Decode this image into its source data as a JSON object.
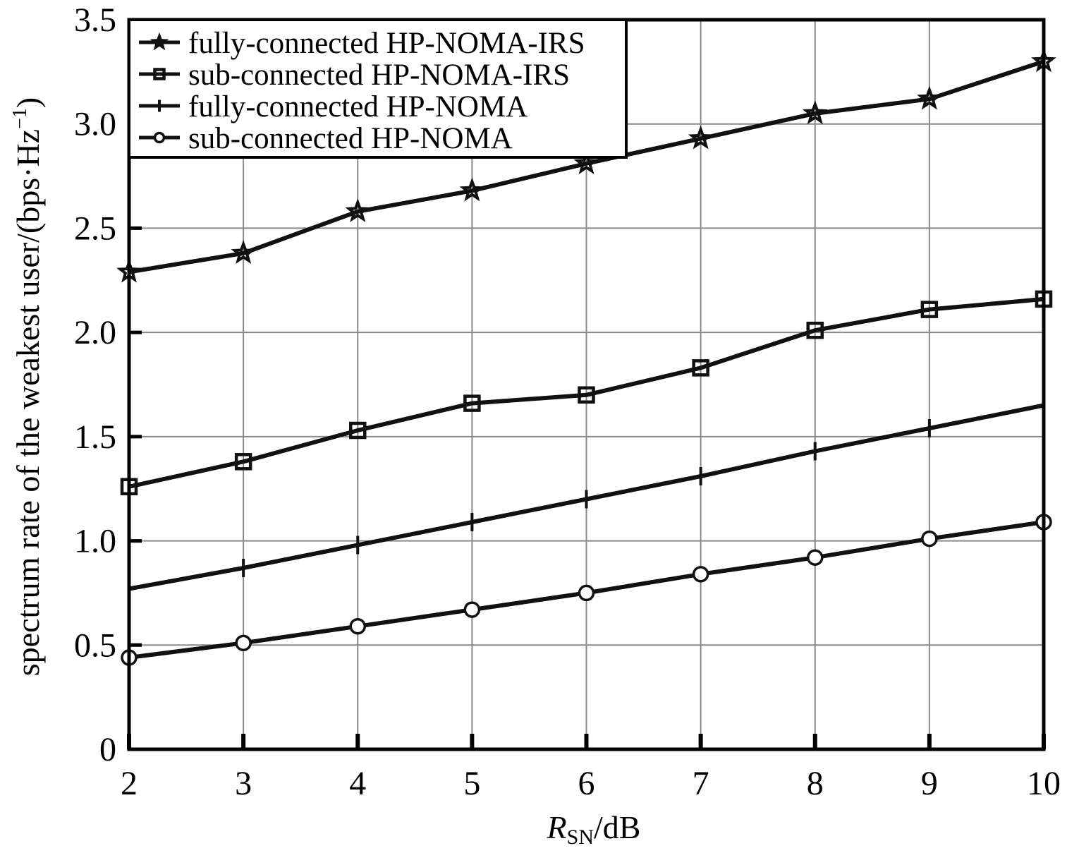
{
  "chart_data": {
    "type": "line",
    "title": "",
    "xlabel_main": "R",
    "xlabel_sub": "SN",
    "xlabel_unit": "/dB",
    "ylabel_text": "spectrum rate of the weakest user/(bps·Hz",
    "ylabel_sup": "−1",
    "ylabel_close": ")",
    "x": [
      2,
      3,
      4,
      5,
      6,
      7,
      8,
      9,
      10
    ],
    "x_tick_labels": [
      "2",
      "3",
      "4",
      "5",
      "6",
      "7",
      "8",
      "9",
      "10"
    ],
    "y_ticks": [
      0,
      0.5,
      1.0,
      1.5,
      2.0,
      2.5,
      3.0,
      3.5
    ],
    "y_tick_labels": [
      "0",
      "0.5",
      "1.0",
      "1.5",
      "2.0",
      "2.5",
      "3.0",
      "3.5"
    ],
    "xlim": [
      2,
      10
    ],
    "ylim": [
      0,
      3.5
    ],
    "grid": true,
    "legend_position": "top-left",
    "line_color": "#111111",
    "grid_color": "#8a8a8a",
    "series": [
      {
        "name": "fully-connected HP-NOMA-IRS",
        "marker": "star",
        "values": [
          2.29,
          2.38,
          2.58,
          2.68,
          2.81,
          2.93,
          3.05,
          3.12,
          3.3
        ]
      },
      {
        "name": "sub-connected HP-NOMA-IRS",
        "marker": "square",
        "values": [
          1.26,
          1.38,
          1.53,
          1.66,
          1.7,
          1.83,
          2.01,
          2.11,
          2.16
        ]
      },
      {
        "name": "fully-connected HP-NOMA",
        "marker": "plus",
        "values": [
          0.77,
          0.87,
          0.98,
          1.09,
          1.2,
          1.31,
          1.43,
          1.54,
          1.65
        ]
      },
      {
        "name": "sub-connected HP-NOMA",
        "marker": "circle",
        "values": [
          0.44,
          0.51,
          0.59,
          0.67,
          0.75,
          0.84,
          0.92,
          1.01,
          1.09
        ]
      }
    ]
  }
}
